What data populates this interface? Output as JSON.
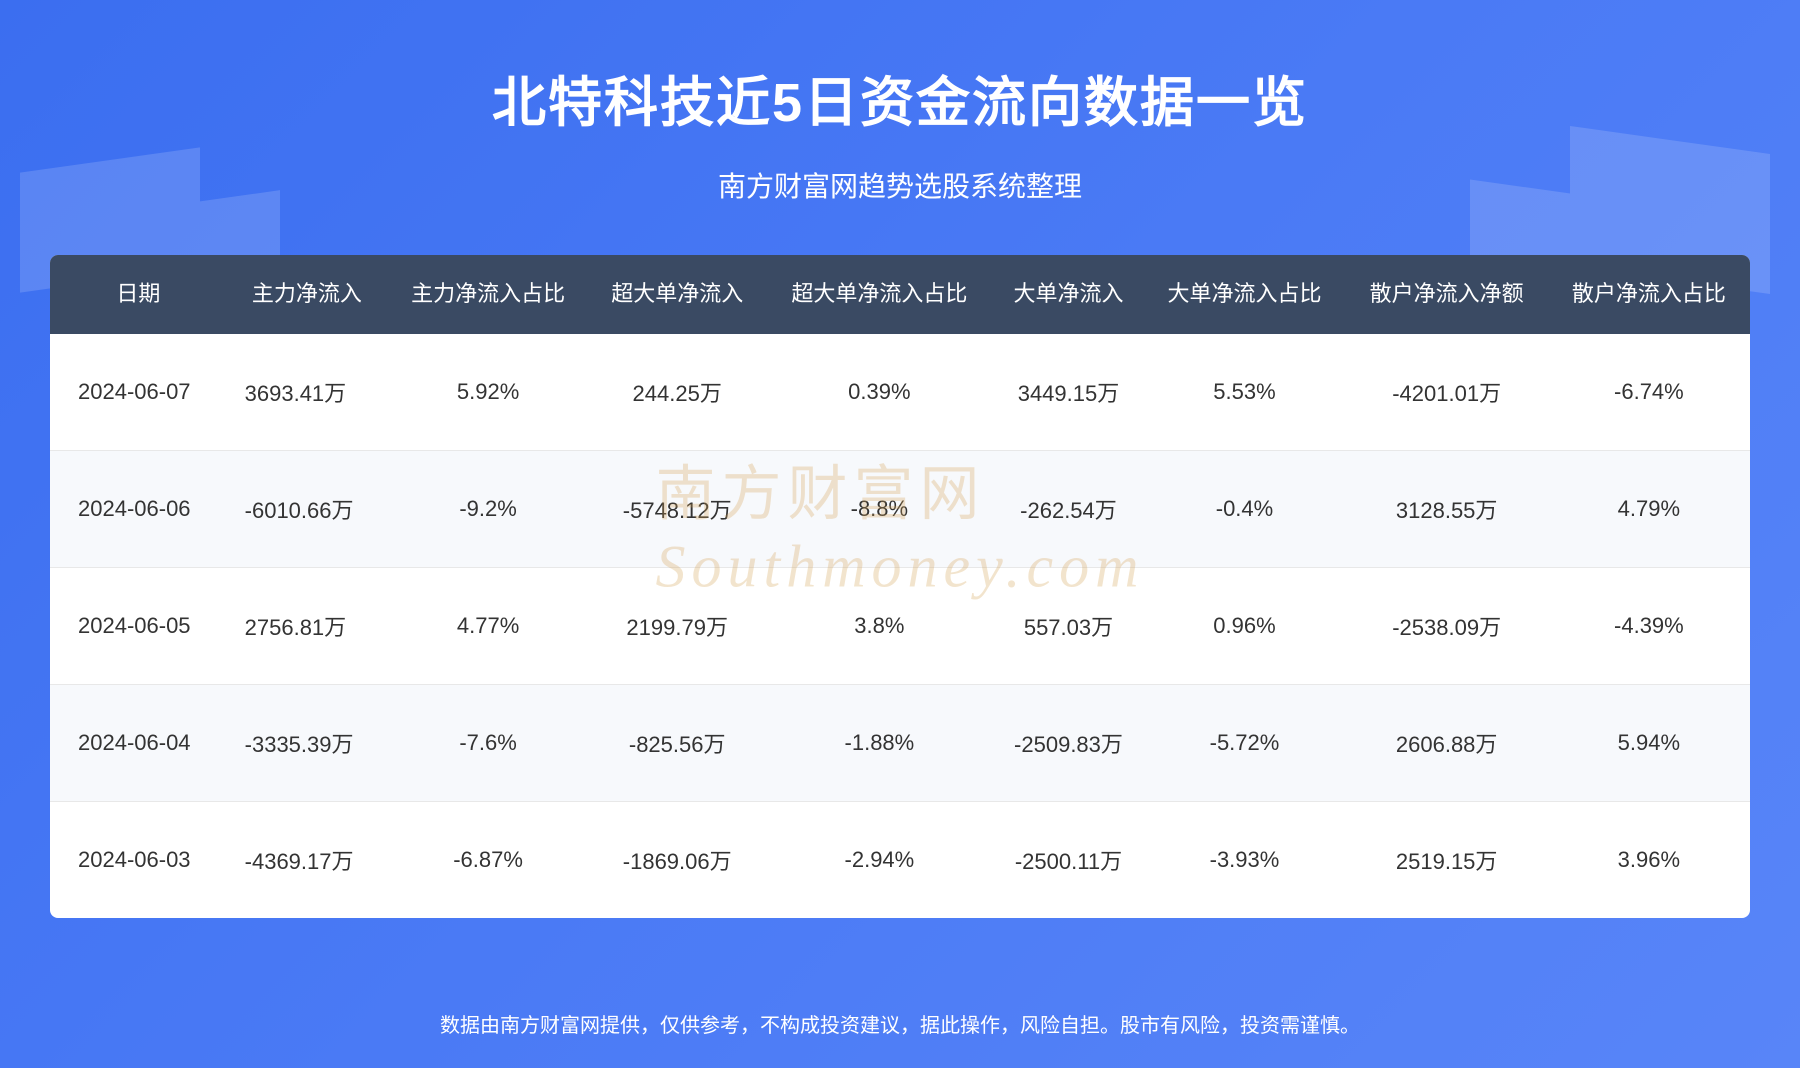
{
  "header": {
    "title": "北特科技近5日资金流向数据一览",
    "subtitle": "南方财富网趋势选股系统整理"
  },
  "table": {
    "columns": [
      "日期",
      "主力净流入",
      "主力净流入占比",
      "超大单净流入",
      "超大单净流入占比",
      "大单净流入",
      "大单净流入占比",
      "散户净流入净额",
      "散户净流入占比"
    ],
    "rows": [
      [
        "2024-06-07",
        "3693.41万",
        "5.92%",
        "244.25万",
        "0.39%",
        "3449.15万",
        "5.53%",
        "-4201.01万",
        "-6.74%"
      ],
      [
        "2024-06-06",
        "-6010.66万",
        "-9.2%",
        "-5748.12万",
        "-8.8%",
        "-262.54万",
        "-0.4%",
        "3128.55万",
        "4.79%"
      ],
      [
        "2024-06-05",
        "2756.81万",
        "4.77%",
        "2199.79万",
        "3.8%",
        "557.03万",
        "0.96%",
        "-2538.09万",
        "-4.39%"
      ],
      [
        "2024-06-04",
        "-3335.39万",
        "-7.6%",
        "-825.56万",
        "-1.88%",
        "-2509.83万",
        "-5.72%",
        "2606.88万",
        "5.94%"
      ],
      [
        "2024-06-03",
        "-4369.17万",
        "-6.87%",
        "-1869.06万",
        "-2.94%",
        "-2500.11万",
        "-3.93%",
        "2519.15万",
        "3.96%"
      ]
    ],
    "header_bg": "#3a4a63",
    "header_color": "#ffffff",
    "row_alt_bg": "#f7f9fc",
    "cell_color": "#333333",
    "border_color": "#e8e8e8"
  },
  "watermark": {
    "text_cn": "南方财富网",
    "text_en": "Southmoney.com"
  },
  "footer": {
    "text": "数据由南方财富网提供，仅供参考，不构成投资建议，据此操作，风险自担。股市有风险，投资需谨慎。"
  },
  "colors": {
    "bg_gradient_start": "#3b6ef0",
    "bg_gradient_end": "#5885f8",
    "title_color": "#ffffff",
    "watermark_color": "#d4a050"
  }
}
